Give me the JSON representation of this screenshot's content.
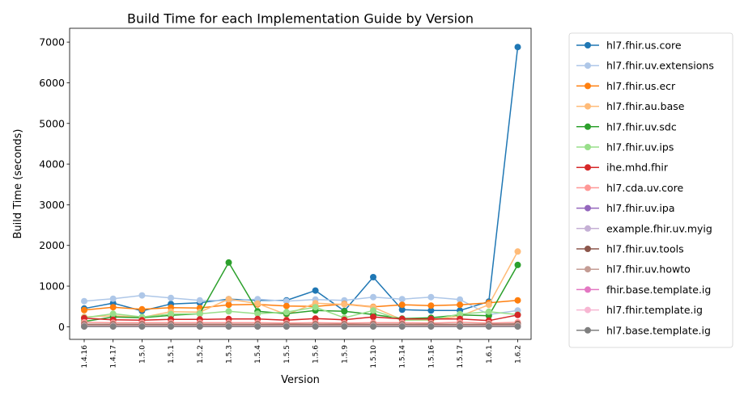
{
  "chart_data": {
    "type": "line",
    "title": "Build Time for each Implementation Guide by Version",
    "xlabel": "Version",
    "ylabel": "Build Time (seconds)",
    "categories": [
      "1.4.16",
      "1.4.17",
      "1.5.0",
      "1.5.1",
      "1.5.2",
      "1.5.3",
      "1.5.4",
      "1.5.5",
      "1.5.6",
      "1.5.9",
      "1.5.10",
      "1.5.14",
      "1.5.16",
      "1.5.17",
      "1.6.1",
      "1.6.2"
    ],
    "ylim": [
      -310,
      7340
    ],
    "yticks": [
      0,
      1000,
      2000,
      3000,
      4000,
      5000,
      6000,
      7000
    ],
    "grid": false,
    "legend_position": "outside-right",
    "series": [
      {
        "name": "hl7.fhir.us.core",
        "color": "#1f77b4",
        "values": [
          450,
          580,
          390,
          560,
          590,
          680,
          650,
          650,
          890,
          390,
          1220,
          420,
          400,
          400,
          620,
          6880
        ]
      },
      {
        "name": "hl7.fhir.uv.extensions",
        "color": "#aec7e8",
        "values": [
          630,
          690,
          770,
          710,
          650,
          640,
          680,
          630,
          670,
          650,
          730,
          680,
          730,
          670,
          300,
          400
        ]
      },
      {
        "name": "hl7.fhir.us.ecr",
        "color": "#ff7f0e",
        "values": [
          410,
          480,
          430,
          470,
          460,
          540,
          550,
          510,
          500,
          560,
          490,
          540,
          520,
          540,
          590,
          650
        ]
      },
      {
        "name": "hl7.fhir.au.base",
        "color": "#ffbb78",
        "values": [
          240,
          270,
          230,
          370,
          360,
          680,
          570,
          300,
          580,
          550,
          480,
          170,
          160,
          260,
          540,
          1850
        ]
      },
      {
        "name": "hl7.fhir.uv.sdc",
        "color": "#2ca02c",
        "values": [
          130,
          240,
          220,
          280,
          320,
          1580,
          380,
          320,
          400,
          380,
          300,
          200,
          220,
          290,
          270,
          1520
        ]
      },
      {
        "name": "hl7.fhir.uv.ips",
        "color": "#98df8a",
        "values": [
          220,
          320,
          240,
          310,
          320,
          380,
          320,
          360,
          480,
          220,
          400,
          160,
          170,
          310,
          370,
          300
        ]
      },
      {
        "name": "ihe.mhd.fhir",
        "color": "#d62728",
        "values": [
          210,
          170,
          160,
          180,
          180,
          190,
          190,
          160,
          200,
          170,
          240,
          190,
          190,
          190,
          150,
          290
        ]
      },
      {
        "name": "hl7.cda.uv.core",
        "color": "#ff9896",
        "values": [
          110,
          100,
          100,
          100,
          100,
          100,
          100,
          90,
          100,
          90,
          100,
          100,
          90,
          110,
          90,
          110
        ]
      },
      {
        "name": "hl7.fhir.uv.ipa",
        "color": "#9467bd",
        "values": [
          30,
          30,
          30,
          30,
          30,
          30,
          30,
          30,
          30,
          30,
          40,
          30,
          30,
          30,
          30,
          40
        ]
      },
      {
        "name": "example.fhir.uv.myig",
        "color": "#c5b0d5",
        "values": [
          20,
          20,
          20,
          20,
          20,
          20,
          20,
          20,
          30,
          20,
          20,
          20,
          20,
          20,
          20,
          30
        ]
      },
      {
        "name": "hl7.fhir.uv.tools",
        "color": "#8c564b",
        "values": [
          60,
          60,
          60,
          60,
          60,
          60,
          60,
          60,
          60,
          60,
          60,
          60,
          60,
          60,
          60,
          70
        ]
      },
      {
        "name": "hl7.fhir.uv.howto",
        "color": "#c49c94",
        "values": [
          40,
          40,
          40,
          40,
          40,
          40,
          40,
          40,
          40,
          40,
          40,
          40,
          40,
          40,
          40,
          40
        ]
      },
      {
        "name": "fhir.base.template.ig",
        "color": "#e377c2",
        "values": [
          10,
          10,
          10,
          10,
          10,
          10,
          10,
          10,
          10,
          10,
          10,
          10,
          10,
          10,
          10,
          10
        ]
      },
      {
        "name": "hl7.fhir.template.ig",
        "color": "#f7b6d2",
        "values": [
          10,
          10,
          10,
          10,
          10,
          10,
          10,
          10,
          10,
          10,
          10,
          10,
          10,
          10,
          10,
          10
        ]
      },
      {
        "name": "hl7.base.template.ig",
        "color": "#7f7f7f",
        "values": [
          5,
          5,
          5,
          5,
          5,
          5,
          5,
          5,
          5,
          5,
          5,
          5,
          5,
          5,
          5,
          5
        ]
      }
    ]
  }
}
